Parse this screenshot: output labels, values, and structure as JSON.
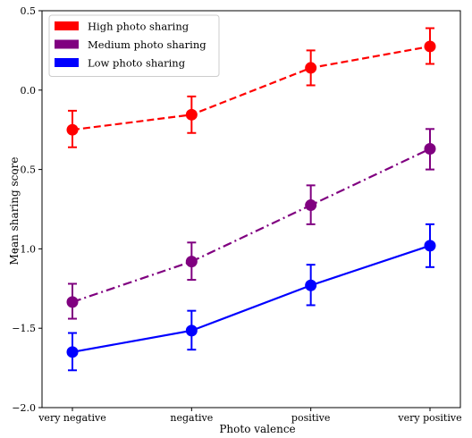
{
  "chart_data": {
    "type": "line",
    "xlabel": "Photo valence",
    "ylabel": "Mean sharing score",
    "categories": [
      "very negative",
      "negative",
      "positive",
      "very positive"
    ],
    "ylim": [
      -2.0,
      0.5
    ],
    "yticks": [
      "−2.0",
      "−1.5",
      "−1.0",
      "−0.5",
      "0.0",
      "0.5"
    ],
    "ytick_values": [
      -2.0,
      -1.5,
      -1.0,
      -0.5,
      0.0,
      0.5
    ],
    "grid": false,
    "legend_position": "top-left",
    "series": [
      {
        "name": "High photo sharing",
        "color": "#ff0000",
        "line_style": "dashed",
        "values": [
          -0.25,
          -0.155,
          0.14,
          0.275
        ],
        "err_low": [
          -0.36,
          -0.27,
          0.03,
          0.165
        ],
        "err_high": [
          -0.13,
          -0.04,
          0.25,
          0.39
        ]
      },
      {
        "name": "Medium photo sharing",
        "color": "#800080",
        "line_style": "dashdot",
        "values": [
          -1.335,
          -1.08,
          -0.725,
          -0.37
        ],
        "err_low": [
          -1.44,
          -1.195,
          -0.845,
          -0.5
        ],
        "err_high": [
          -1.22,
          -0.96,
          -0.6,
          -0.245
        ]
      },
      {
        "name": "Low photo sharing",
        "color": "#0000ff",
        "line_style": "solid",
        "values": [
          -1.65,
          -1.515,
          -1.23,
          -0.98
        ],
        "err_low": [
          -1.765,
          -1.635,
          -1.355,
          -1.115
        ],
        "err_high": [
          -1.53,
          -1.39,
          -1.1,
          -0.845
        ]
      }
    ]
  }
}
